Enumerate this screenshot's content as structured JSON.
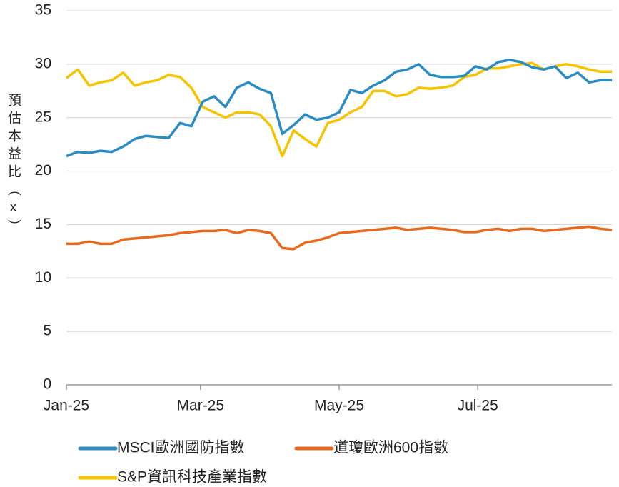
{
  "chart_data": {
    "type": "line",
    "y_label": "預估本益比（x）",
    "x": [
      0,
      5,
      10,
      15,
      20,
      25,
      30,
      35,
      40,
      45,
      50,
      55,
      60,
      65,
      70,
      75,
      80,
      85,
      90,
      95,
      100,
      105,
      110,
      115,
      120,
      125,
      130,
      135,
      140,
      145,
      150,
      155,
      160,
      165,
      170,
      175,
      180,
      185,
      190,
      195,
      200,
      205,
      210,
      215,
      220,
      225,
      230,
      235,
      240
    ],
    "xlim": [
      0,
      240
    ],
    "xticks": [
      {
        "value": 0,
        "label": "Jan-25"
      },
      {
        "value": 59,
        "label": "Mar-25"
      },
      {
        "value": 120,
        "label": "May-25"
      },
      {
        "value": 181,
        "label": "Jul-25"
      }
    ],
    "ylim": [
      0,
      35
    ],
    "yticks": [
      0,
      5,
      10,
      15,
      20,
      25,
      30,
      35
    ],
    "grid": true,
    "series": [
      {
        "name": "MSCI歐洲國防指數",
        "color": "#2b8cc4",
        "values": [
          21.4,
          21.8,
          21.7,
          21.9,
          21.8,
          22.3,
          23.0,
          23.3,
          23.2,
          23.1,
          24.5,
          24.2,
          26.5,
          27.0,
          26.0,
          27.8,
          28.3,
          27.7,
          27.3,
          23.5,
          24.3,
          25.3,
          24.8,
          25.0,
          25.5,
          27.6,
          27.3,
          28.0,
          28.5,
          29.3,
          29.5,
          30.0,
          29.0,
          28.8,
          28.8,
          28.9,
          29.8,
          29.5,
          30.2,
          30.4,
          30.2,
          29.7,
          29.5,
          29.8,
          28.7,
          29.2,
          28.3,
          28.5,
          28.5
        ]
      },
      {
        "name": "道瓊歐洲600指數",
        "color": "#e8681c",
        "values": [
          13.2,
          13.2,
          13.4,
          13.2,
          13.2,
          13.6,
          13.7,
          13.8,
          13.9,
          14.0,
          14.2,
          14.3,
          14.4,
          14.4,
          14.5,
          14.2,
          14.5,
          14.4,
          14.2,
          12.8,
          12.7,
          13.3,
          13.5,
          13.8,
          14.2,
          14.3,
          14.4,
          14.5,
          14.6,
          14.7,
          14.5,
          14.6,
          14.7,
          14.6,
          14.5,
          14.3,
          14.3,
          14.5,
          14.6,
          14.4,
          14.6,
          14.6,
          14.4,
          14.5,
          14.6,
          14.7,
          14.8,
          14.6,
          14.5
        ]
      },
      {
        "name": "S&P資訊科技產業指數",
        "color": "#f5c400",
        "values": [
          28.7,
          29.5,
          28.0,
          28.3,
          28.5,
          29.2,
          28.0,
          28.3,
          28.5,
          29.0,
          28.8,
          27.8,
          26.0,
          25.5,
          25.0,
          25.5,
          25.5,
          25.3,
          24.2,
          21.4,
          23.8,
          23.0,
          22.3,
          24.5,
          24.8,
          25.5,
          26.0,
          27.5,
          27.5,
          27.0,
          27.2,
          27.8,
          27.7,
          27.8,
          28.0,
          28.8,
          29.0,
          29.6,
          29.6,
          29.8,
          30.0,
          30.1,
          29.5,
          29.8,
          30.0,
          29.8,
          29.5,
          29.3,
          29.3
        ]
      }
    ]
  }
}
